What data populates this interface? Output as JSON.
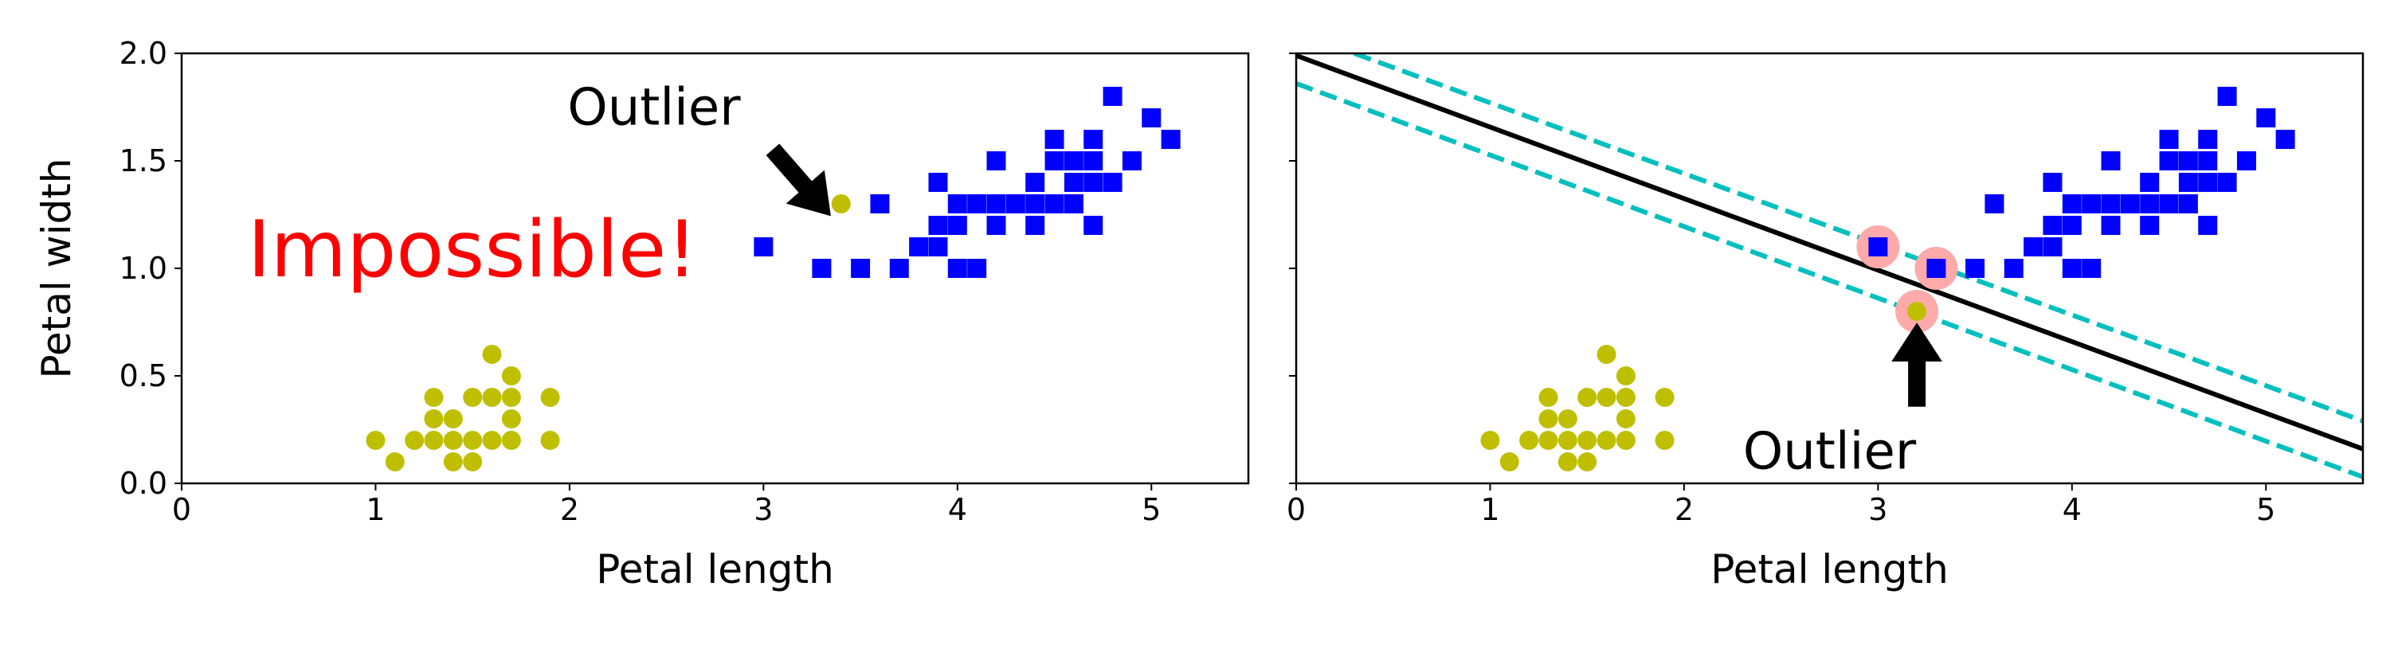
{
  "chart_data": [
    {
      "type": "scatter",
      "title": "",
      "xlabel": "Petal length",
      "ylabel": "Petal width",
      "xlim": [
        0,
        5.5
      ],
      "ylim": [
        0,
        2.0
      ],
      "xticks": [
        "0",
        "1",
        "2",
        "3",
        "4",
        "5"
      ],
      "yticks": [
        "0.0",
        "0.5",
        "1.0",
        "1.5",
        "2.0"
      ],
      "grid": false,
      "series": [
        {
          "marker": "circle",
          "color": "#bfbf00",
          "points": [
            [
              1.0,
              0.2
            ],
            [
              1.1,
              0.1
            ],
            [
              1.2,
              0.2
            ],
            [
              1.3,
              0.2
            ],
            [
              1.3,
              0.3
            ],
            [
              1.3,
              0.4
            ],
            [
              1.4,
              0.1
            ],
            [
              1.4,
              0.2
            ],
            [
              1.4,
              0.3
            ],
            [
              1.5,
              0.1
            ],
            [
              1.5,
              0.2
            ],
            [
              1.5,
              0.4
            ],
            [
              1.6,
              0.2
            ],
            [
              1.6,
              0.4
            ],
            [
              1.6,
              0.6
            ],
            [
              1.7,
              0.2
            ],
            [
              1.7,
              0.3
            ],
            [
              1.7,
              0.4
            ],
            [
              1.7,
              0.5
            ],
            [
              1.9,
              0.2
            ],
            [
              1.9,
              0.4
            ],
            [
              3.4,
              1.3
            ]
          ]
        },
        {
          "marker": "square",
          "color": "#0000ff",
          "points": [
            [
              3.0,
              1.1
            ],
            [
              3.3,
              1.0
            ],
            [
              3.5,
              1.0
            ],
            [
              3.6,
              1.3
            ],
            [
              3.7,
              1.0
            ],
            [
              3.8,
              1.1
            ],
            [
              3.9,
              1.1
            ],
            [
              3.9,
              1.2
            ],
            [
              3.9,
              1.4
            ],
            [
              4.0,
              1.0
            ],
            [
              4.0,
              1.2
            ],
            [
              4.0,
              1.3
            ],
            [
              4.1,
              1.0
            ],
            [
              4.1,
              1.3
            ],
            [
              4.2,
              1.2
            ],
            [
              4.2,
              1.3
            ],
            [
              4.2,
              1.5
            ],
            [
              4.3,
              1.3
            ],
            [
              4.4,
              1.2
            ],
            [
              4.4,
              1.3
            ],
            [
              4.4,
              1.4
            ],
            [
              4.5,
              1.3
            ],
            [
              4.5,
              1.5
            ],
            [
              4.5,
              1.6
            ],
            [
              4.6,
              1.3
            ],
            [
              4.6,
              1.4
            ],
            [
              4.6,
              1.5
            ],
            [
              4.7,
              1.2
            ],
            [
              4.7,
              1.4
            ],
            [
              4.7,
              1.5
            ],
            [
              4.7,
              1.6
            ],
            [
              4.8,
              1.4
            ],
            [
              4.8,
              1.8
            ],
            [
              4.9,
              1.5
            ],
            [
              5.0,
              1.7
            ],
            [
              5.1,
              1.6
            ]
          ]
        }
      ],
      "annotations": [
        {
          "text": "Outlier",
          "xy": [
            3.4,
            1.3
          ],
          "xytext": [
            2.6,
            1.75
          ],
          "color": "#000000"
        },
        {
          "text": "Impossible!",
          "xy": [
            1.5,
            1.0
          ],
          "color": "#ff0000"
        }
      ]
    },
    {
      "type": "scatter",
      "title": "",
      "xlabel": "Petal length",
      "ylabel": "",
      "xlim": [
        0,
        5.5
      ],
      "ylim": [
        0,
        2.0
      ],
      "xticks": [
        "0",
        "1",
        "2",
        "3",
        "4",
        "5"
      ],
      "grid": false,
      "series": [
        {
          "marker": "circle",
          "color": "#bfbf00",
          "points": [
            [
              1.0,
              0.2
            ],
            [
              1.1,
              0.1
            ],
            [
              1.2,
              0.2
            ],
            [
              1.3,
              0.2
            ],
            [
              1.3,
              0.3
            ],
            [
              1.3,
              0.4
            ],
            [
              1.4,
              0.1
            ],
            [
              1.4,
              0.2
            ],
            [
              1.4,
              0.3
            ],
            [
              1.5,
              0.1
            ],
            [
              1.5,
              0.2
            ],
            [
              1.5,
              0.4
            ],
            [
              1.6,
              0.2
            ],
            [
              1.6,
              0.4
            ],
            [
              1.6,
              0.6
            ],
            [
              1.7,
              0.2
            ],
            [
              1.7,
              0.3
            ],
            [
              1.7,
              0.4
            ],
            [
              1.7,
              0.5
            ],
            [
              1.9,
              0.2
            ],
            [
              1.9,
              0.4
            ],
            [
              3.2,
              0.8
            ]
          ]
        },
        {
          "marker": "square",
          "color": "#0000ff",
          "points": [
            [
              3.0,
              1.1
            ],
            [
              3.3,
              1.0
            ],
            [
              3.5,
              1.0
            ],
            [
              3.6,
              1.3
            ],
            [
              3.7,
              1.0
            ],
            [
              3.8,
              1.1
            ],
            [
              3.9,
              1.1
            ],
            [
              3.9,
              1.2
            ],
            [
              3.9,
              1.4
            ],
            [
              4.0,
              1.0
            ],
            [
              4.0,
              1.2
            ],
            [
              4.0,
              1.3
            ],
            [
              4.1,
              1.0
            ],
            [
              4.1,
              1.3
            ],
            [
              4.2,
              1.2
            ],
            [
              4.2,
              1.3
            ],
            [
              4.2,
              1.5
            ],
            [
              4.3,
              1.3
            ],
            [
              4.4,
              1.2
            ],
            [
              4.4,
              1.3
            ],
            [
              4.4,
              1.4
            ],
            [
              4.5,
              1.3
            ],
            [
              4.5,
              1.5
            ],
            [
              4.5,
              1.6
            ],
            [
              4.6,
              1.3
            ],
            [
              4.6,
              1.4
            ],
            [
              4.6,
              1.5
            ],
            [
              4.7,
              1.2
            ],
            [
              4.7,
              1.4
            ],
            [
              4.7,
              1.5
            ],
            [
              4.7,
              1.6
            ],
            [
              4.8,
              1.4
            ],
            [
              4.8,
              1.8
            ],
            [
              4.9,
              1.5
            ],
            [
              5.0,
              1.7
            ],
            [
              5.1,
              1.6
            ]
          ]
        }
      ],
      "decision_boundary": {
        "color": "#000000",
        "x": [
          0,
          5.5
        ],
        "y": [
          1.99,
          0.16
        ]
      },
      "margins": {
        "color": "#00bfbf",
        "upper": {
          "x": [
            0.3,
            5.5
          ],
          "y": [
            2.0,
            0.29
          ]
        },
        "lower": {
          "x": [
            0,
            5.5
          ],
          "y": [
            1.86,
            0.03
          ]
        }
      },
      "support_vectors": {
        "color": "#ffaaaa",
        "points": [
          [
            3.0,
            1.1
          ],
          [
            3.3,
            1.0
          ],
          [
            3.2,
            0.8
          ]
        ]
      },
      "annotations": [
        {
          "text": "Outlier",
          "xy": [
            3.2,
            0.8
          ],
          "xytext": [
            2.75,
            0.15
          ],
          "color": "#000000"
        }
      ]
    }
  ]
}
